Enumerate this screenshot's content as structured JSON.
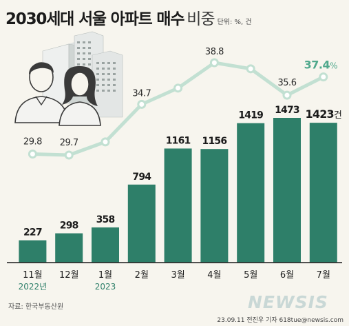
{
  "header": {
    "title": "2030세대 서울 아파트 매수",
    "title_suffix": "비중",
    "unit": "단위: %, 건"
  },
  "footer": {
    "source": "자료: 한국부동산원",
    "watermark": "NEWSIS",
    "credit": "23.09.11 전진우 기자 618tue@newsis.com"
  },
  "colors": {
    "bar": "#2e7f69",
    "line": "#c2e0d2",
    "last_share_label": "#4fa88c",
    "background": "#f7f5ee",
    "baseline": "#1b1b1b"
  },
  "illustration": {
    "icons": [
      "apartment-building-icon",
      "young-couple-icon"
    ]
  },
  "chart_data": {
    "type": "bar+line",
    "categories": [
      "11월",
      "12월",
      "1월",
      "2월",
      "3월",
      "4월",
      "5월",
      "6월",
      "7월"
    ],
    "category_sublabels": [
      "2022년",
      "",
      "2023",
      "",
      "",
      "",
      "",
      "",
      ""
    ],
    "bar_series": {
      "values": [
        227,
        298,
        358,
        794,
        1161,
        1156,
        1419,
        1473,
        1423
      ],
      "labels": [
        "227",
        "298",
        "358",
        "794",
        "1161",
        "1156",
        "1419",
        "1473",
        "1423"
      ],
      "last_label_unit": "건"
    },
    "line_series": {
      "values": [
        29.8,
        29.7,
        31.0,
        34.7,
        36.3,
        38.8,
        38.2,
        35.6,
        37.4
      ],
      "labels": [
        "29.8",
        "29.7",
        "",
        "34.7",
        "",
        "38.8",
        "",
        "35.6",
        "37.4"
      ],
      "last_label_unit": "%"
    },
    "ylim_bars": [
      0,
      1473
    ],
    "ylim_line": [
      29.7,
      38.8
    ],
    "grid": false,
    "legend": "none"
  }
}
